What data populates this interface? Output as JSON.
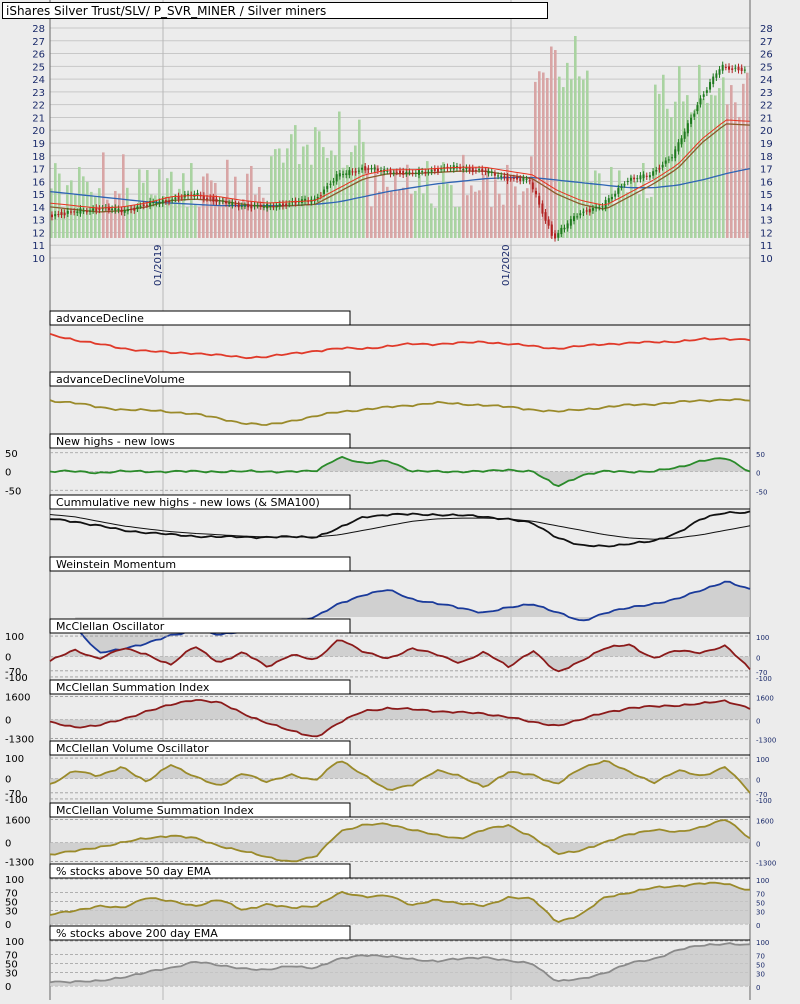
{
  "title": "iShares Silver Trust/SLV/ P_SVR_MINER / Silver miners",
  "colors": {
    "background": "#ececec",
    "candle_up": "#1f7a1f",
    "candle_down": "#b22222",
    "volume_up": "#a9d3a1",
    "volume_down": "#d8a5a5",
    "sma_fast": "#8b5a2b",
    "sma_mid": "#e8321e",
    "sma_slow": "#2e64b4",
    "ad_line": "#e03a2a",
    "olive": "#9a8a2a",
    "green": "#2a8a2a",
    "black": "#111111",
    "navy": "#1a3a9a",
    "maroon": "#8b1a1a",
    "gray": "#8a8a8a",
    "fill": "#c9c9c9"
  },
  "chart_data": [
    {
      "type": "candlestick",
      "title": "iShares Silver Trust/SLV/ P_SVR_MINER / Silver miners",
      "y_ticks": [
        "28",
        "27",
        "26",
        "25",
        "24",
        "23",
        "22",
        "21",
        "20",
        "19",
        "18",
        "17",
        "16",
        "15",
        "14",
        "13",
        "12",
        "11",
        "10"
      ],
      "ylim": [
        10,
        28
      ],
      "x_labels": [
        "01/2019",
        "01/2020"
      ],
      "series": [
        {
          "name": "price",
          "values": [
            13.4,
            13.6,
            13.9,
            13.7,
            14.2,
            14.6,
            15.0,
            14.4,
            14.1,
            14.0,
            14.3,
            14.6,
            16.5,
            17.0,
            16.8,
            16.6,
            16.9,
            17.1,
            16.8,
            16.3,
            16.0,
            11.5,
            13.5,
            14.0,
            16.0,
            16.5,
            18.0,
            22.0,
            25.0,
            24.7
          ]
        },
        {
          "name": "sma50",
          "values": [
            14.0,
            13.8,
            13.6,
            13.7,
            14.0,
            14.5,
            14.6,
            14.5,
            14.2,
            14.0,
            14.1,
            14.2,
            15.2,
            16.2,
            16.6,
            16.6,
            16.7,
            16.8,
            16.8,
            16.5,
            16.2,
            15.0,
            14.2,
            13.8,
            14.8,
            15.8,
            17.0,
            19.0,
            20.5,
            20.4
          ]
        },
        {
          "name": "sma200",
          "values": [
            15.2,
            15.0,
            14.8,
            14.6,
            14.4,
            14.3,
            14.2,
            14.1,
            14.1,
            14.1,
            14.1,
            14.2,
            14.4,
            14.8,
            15.2,
            15.5,
            15.8,
            16.0,
            16.2,
            16.3,
            16.3,
            16.1,
            15.9,
            15.7,
            15.5,
            15.5,
            15.7,
            16.1,
            16.6,
            17.0
          ]
        }
      ]
    },
    {
      "type": "line",
      "title": "advanceDecline",
      "values": [
        0.8,
        0.7,
        0.6,
        0.5,
        0.45,
        0.4,
        0.4,
        0.35,
        0.3,
        0.32,
        0.38,
        0.45,
        0.5,
        0.5,
        0.55,
        0.6,
        0.6,
        0.62,
        0.65,
        0.6,
        0.55,
        0.5,
        0.55,
        0.6,
        0.62,
        0.64,
        0.66,
        0.7,
        0.72,
        0.7
      ]
    },
    {
      "type": "line",
      "title": "advanceDeclineVolume",
      "values": [
        0.7,
        0.65,
        0.55,
        0.5,
        0.48,
        0.45,
        0.4,
        0.3,
        0.2,
        0.15,
        0.25,
        0.35,
        0.45,
        0.5,
        0.55,
        0.6,
        0.65,
        0.62,
        0.6,
        0.55,
        0.5,
        0.45,
        0.5,
        0.55,
        0.6,
        0.62,
        0.66,
        0.7,
        0.72,
        0.7
      ]
    },
    {
      "type": "area",
      "title": "New highs - new lows",
      "y_ticks": [
        "50",
        "0",
        "-50"
      ],
      "ylim": [
        -60,
        60
      ],
      "values": [
        0,
        0,
        -3,
        0,
        0,
        0,
        0,
        0,
        0,
        0,
        0,
        0,
        40,
        20,
        30,
        0,
        0,
        0,
        0,
        5,
        0,
        -40,
        -10,
        0,
        0,
        0,
        10,
        30,
        35,
        0
      ]
    },
    {
      "type": "line",
      "title": "Cummulative new highs - new lows (& SMA100)",
      "series": [
        {
          "name": "cumulative",
          "values": [
            0.8,
            0.75,
            0.65,
            0.55,
            0.5,
            0.45,
            0.42,
            0.4,
            0.4,
            0.4,
            0.4,
            0.4,
            0.6,
            0.85,
            0.9,
            0.9,
            0.9,
            0.88,
            0.85,
            0.8,
            0.7,
            0.4,
            0.2,
            0.2,
            0.25,
            0.3,
            0.5,
            0.8,
            0.95,
            0.95
          ]
        },
        {
          "name": "sma100",
          "values": [
            0.9,
            0.85,
            0.75,
            0.65,
            0.58,
            0.52,
            0.48,
            0.45,
            0.42,
            0.4,
            0.4,
            0.4,
            0.45,
            0.55,
            0.65,
            0.75,
            0.8,
            0.82,
            0.82,
            0.8,
            0.75,
            0.65,
            0.55,
            0.45,
            0.38,
            0.35,
            0.38,
            0.45,
            0.55,
            0.65
          ]
        }
      ]
    },
    {
      "type": "area",
      "title": "Weinstein Momentum",
      "values": [
        null,
        -0.2,
        -0.8,
        -0.7,
        -0.6,
        -0.4,
        -0.3,
        -0.4,
        -0.3,
        -0.2,
        -0.1,
        0.0,
        0.3,
        0.5,
        0.6,
        0.4,
        0.3,
        0.2,
        0.1,
        0.2,
        0.3,
        0.1,
        -0.1,
        0.1,
        0.2,
        0.3,
        0.4,
        0.6,
        0.8,
        0.6
      ]
    },
    {
      "type": "area",
      "title": "McClellan Oscillator",
      "y_ticks": [
        "100",
        "0",
        "-70",
        "-100"
      ],
      "ylim": [
        -110,
        110
      ],
      "values": [
        -20,
        30,
        -10,
        40,
        10,
        -40,
        50,
        -30,
        20,
        -50,
        10,
        -20,
        90,
        20,
        -10,
        40,
        10,
        -30,
        20,
        -50,
        30,
        -80,
        -20,
        40,
        60,
        -10,
        30,
        20,
        50,
        -60
      ]
    },
    {
      "type": "area",
      "title": "McClellan Summation Index",
      "y_ticks": [
        "1600",
        "0",
        "-1300"
      ],
      "ylim": [
        -1400,
        1700
      ],
      "values": [
        -200,
        -500,
        -400,
        0,
        600,
        1000,
        1400,
        1200,
        400,
        -200,
        -800,
        -1200,
        -200,
        600,
        800,
        700,
        600,
        500,
        400,
        200,
        -200,
        -400,
        0,
        500,
        800,
        900,
        1000,
        1100,
        1300,
        800
      ]
    },
    {
      "type": "area",
      "title": "McClellan Volume Oscillator",
      "y_ticks": [
        "100",
        "0",
        "-70",
        "-100"
      ],
      "ylim": [
        -110,
        110
      ],
      "values": [
        -30,
        40,
        10,
        60,
        -20,
        70,
        10,
        -40,
        30,
        -20,
        20,
        -10,
        90,
        20,
        -60,
        -30,
        40,
        10,
        -40,
        30,
        20,
        -30,
        50,
        90,
        30,
        -20,
        40,
        10,
        60,
        -70
      ]
    },
    {
      "type": "area",
      "title": "McClellan Volume Summation Index",
      "y_ticks": [
        "1600",
        "0",
        "-1300"
      ],
      "ylim": [
        -1400,
        1700
      ],
      "values": [
        -800,
        -600,
        -300,
        0,
        300,
        500,
        300,
        -200,
        -600,
        -1000,
        -1300,
        -1000,
        800,
        1200,
        1300,
        900,
        500,
        300,
        900,
        1200,
        400,
        -800,
        -500,
        0,
        600,
        900,
        700,
        1100,
        1600,
        300
      ]
    },
    {
      "type": "area",
      "title": "% stocks above 50 day EMA",
      "y_ticks": [
        "100",
        "70",
        "50",
        "30",
        "0"
      ],
      "ylim": [
        0,
        100
      ],
      "values": [
        20,
        30,
        40,
        35,
        60,
        50,
        40,
        55,
        30,
        45,
        35,
        40,
        70,
        60,
        65,
        40,
        55,
        45,
        40,
        60,
        55,
        5,
        20,
        60,
        70,
        80,
        85,
        90,
        90,
        75
      ]
    },
    {
      "type": "area",
      "title": "% stocks above 200 day EMA",
      "y_ticks": [
        "100",
        "70",
        "50",
        "30",
        "0"
      ],
      "ylim": [
        0,
        100
      ],
      "values": [
        10,
        10,
        10,
        20,
        30,
        40,
        55,
        45,
        40,
        35,
        45,
        40,
        60,
        70,
        65,
        60,
        55,
        60,
        65,
        55,
        50,
        10,
        15,
        30,
        50,
        60,
        80,
        90,
        95,
        90
      ]
    }
  ]
}
